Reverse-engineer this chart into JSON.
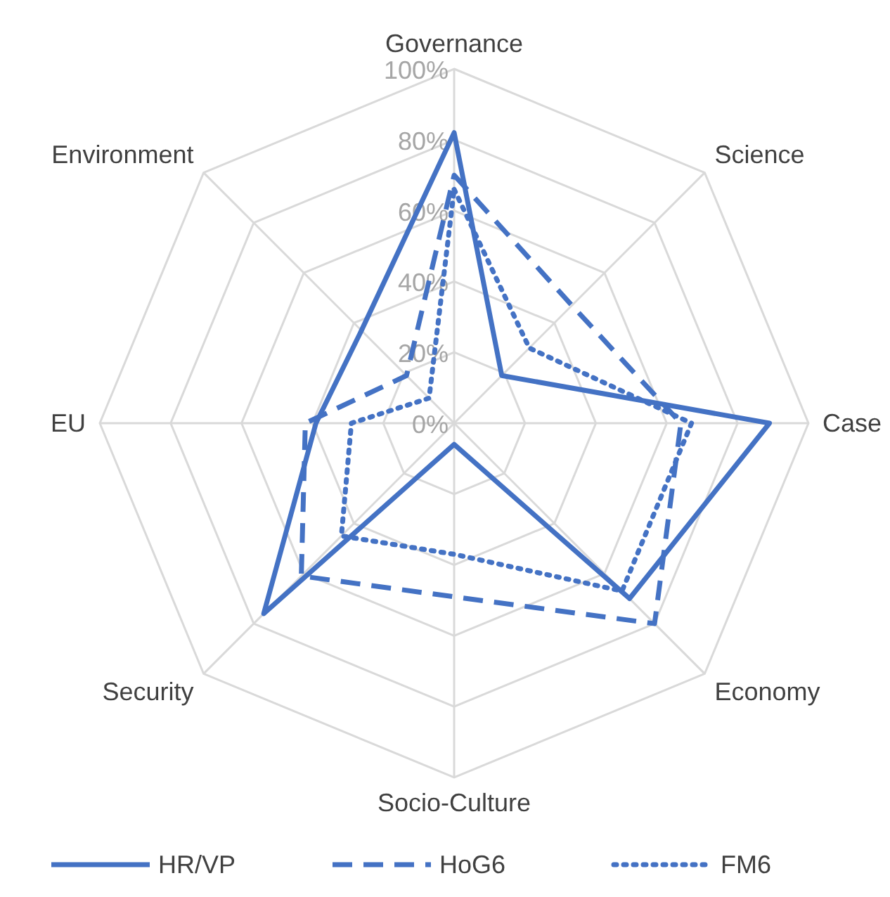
{
  "chart_data": {
    "type": "radar",
    "categories": [
      "Governance",
      "Science",
      "Case",
      "Economy",
      "Socio-Culture",
      "Security",
      "EU",
      "Environment"
    ],
    "ylim": [
      0,
      100
    ],
    "yticks": [
      {
        "value": 0,
        "label": "0%"
      },
      {
        "value": 20,
        "label": "20%"
      },
      {
        "value": 40,
        "label": "40%"
      },
      {
        "value": 60,
        "label": "60%"
      },
      {
        "value": 80,
        "label": "80%"
      },
      {
        "value": 100,
        "label": "100%"
      }
    ],
    "grid": true,
    "legend": "bottom",
    "marker": "none",
    "series": [
      {
        "name": "HR/VP",
        "color": "#4472c4",
        "line_style": "solid",
        "values": [
          82,
          19,
          89,
          70,
          6,
          76,
          39,
          37
        ]
      },
      {
        "name": "HoG6",
        "color": "#4472c4",
        "line_style": "dashed",
        "values": [
          70,
          47,
          64,
          80,
          49,
          61,
          42,
          19
        ]
      },
      {
        "name": "FM6",
        "color": "#4472c4",
        "line_style": "dotted",
        "values": [
          66,
          30,
          67,
          67,
          37,
          45,
          29,
          10
        ]
      }
    ]
  }
}
